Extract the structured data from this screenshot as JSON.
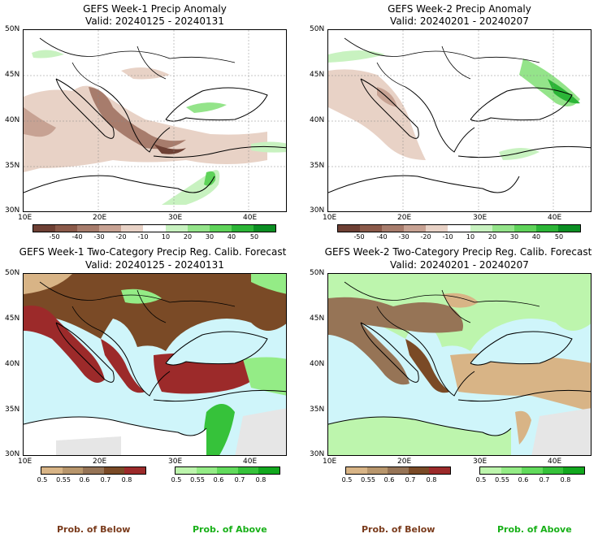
{
  "panels": [
    {
      "title": "GEFS Week-1 Precip Anomaly",
      "valid": "Valid: 20240125 - 20240131"
    },
    {
      "title": "GEFS Week-2 Precip Anomaly",
      "valid": "Valid: 20240201 - 20240207"
    },
    {
      "title": "GEFS Week-1 Two-Category Precip Reg. Calib. Forecast",
      "valid": "Valid: 20240125 - 20240131"
    },
    {
      "title": "GEFS Week-2 Two-Category Precip Reg. Calib. Forecast",
      "valid": "Valid: 20240201 - 20240207"
    }
  ],
  "axis": {
    "lat_labels": [
      "50N",
      "45N",
      "40N",
      "35N",
      "30N"
    ],
    "lon_labels": [
      "10E",
      "20E",
      "30E",
      "40E"
    ]
  },
  "anomaly_legend": {
    "ticks": [
      "-50",
      "-40",
      "-30",
      "-20",
      "-10",
      "10",
      "20",
      "30",
      "40",
      "50"
    ],
    "colors": [
      "#6e4034",
      "#8b5a4a",
      "#a77c6c",
      "#c7a293",
      "#e8d2c6",
      "#ffffff",
      "#c8f2c0",
      "#94e48a",
      "#5fd35a",
      "#2cb537",
      "#0b8e23"
    ]
  },
  "prob_below_legend": {
    "ticks": [
      "0.5",
      "0.55",
      "0.6",
      "0.7",
      "0.8"
    ],
    "colors": [
      "#d8b486",
      "#b8966c",
      "#967456",
      "#7a4a26",
      "#9c2a2a"
    ]
  },
  "prob_above_legend": {
    "ticks": [
      "0.5",
      "0.55",
      "0.6",
      "0.7",
      "0.8"
    ],
    "colors": [
      "#bdf5ad",
      "#94ec86",
      "#62db5c",
      "#36c23a",
      "#12a81e"
    ]
  },
  "footer": {
    "below_left": "Prob. of Below",
    "above_left": "Prob. of Above",
    "below_right": "Prob. of Below",
    "above_right": "Prob. of Above",
    "below_color": "#7a3b1c",
    "above_color": "#18b018"
  },
  "colors": {
    "sea": "#cff5fa",
    "land_gray": "#e6e6e6"
  }
}
